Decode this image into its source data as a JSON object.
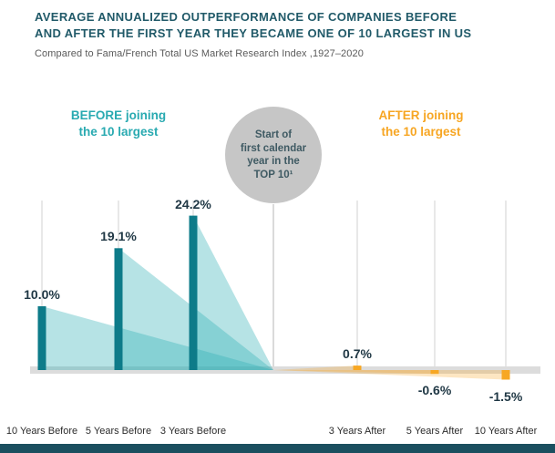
{
  "header": {
    "title_line1": "AVERAGE ANNUALIZED OUTPERFORMANCE OF COMPANIES BEFORE",
    "title_line2": "AND AFTER THE FIRST YEAR THEY BECAME ONE OF 10 LARGEST IN US",
    "subtitle": "Compared to Fama/French Total US Market Research Index ,1927–2020"
  },
  "annotations": {
    "before_bold": "BEFORE",
    "before_rest": " joining",
    "before_line2": "the 10 largest",
    "after_bold": "AFTER",
    "after_rest": " joining",
    "after_line2": "the 10 largest",
    "circle_lines": [
      "Start of",
      "first calendar",
      "year in the",
      "TOP 10¹"
    ]
  },
  "chart_data": {
    "type": "bar",
    "title": "AVERAGE ANNUALIZED OUTPERFORMANCE OF COMPANIES BEFORE AND AFTER THE FIRST YEAR THEY BECAME ONE OF 10 LARGEST IN US",
    "subtitle": "Compared to Fama/French Total US Market Research Index ,1927–2020",
    "categories": [
      "10 Years Before",
      "5 Years Before",
      "3 Years Before",
      "3 Years After",
      "5 Years After",
      "10 Years After"
    ],
    "values": [
      10.0,
      19.1,
      24.2,
      0.7,
      -0.6,
      -1.5
    ],
    "value_labels": [
      "10.0%",
      "19.1%",
      "24.2%",
      "0.7%",
      "-0.6%",
      "-1.5%"
    ],
    "groups": [
      "before",
      "before",
      "before",
      "after",
      "after",
      "after"
    ],
    "unit": "%",
    "ylim": [
      -3,
      27
    ],
    "xlabel": "",
    "ylabel": "",
    "grid": "vertical-category-lines",
    "legend_position": "none",
    "colors": {
      "title": "#215a69",
      "before_bar": "#0d7b89",
      "before_fan": "rgba(47,174,181,0.35)",
      "before_label": "#29aab1",
      "after_bar": "#f7a723",
      "after_fan": "rgba(247,167,35,0.28)",
      "after_label": "#f7a623",
      "baseline": "#dcdcdc",
      "gridline": "#d2d2d2",
      "center_line": "#b5b5b5",
      "circle_bg": "#c6c6c6",
      "value_label": "#1f3744",
      "footer": "#1b4f5f"
    }
  }
}
